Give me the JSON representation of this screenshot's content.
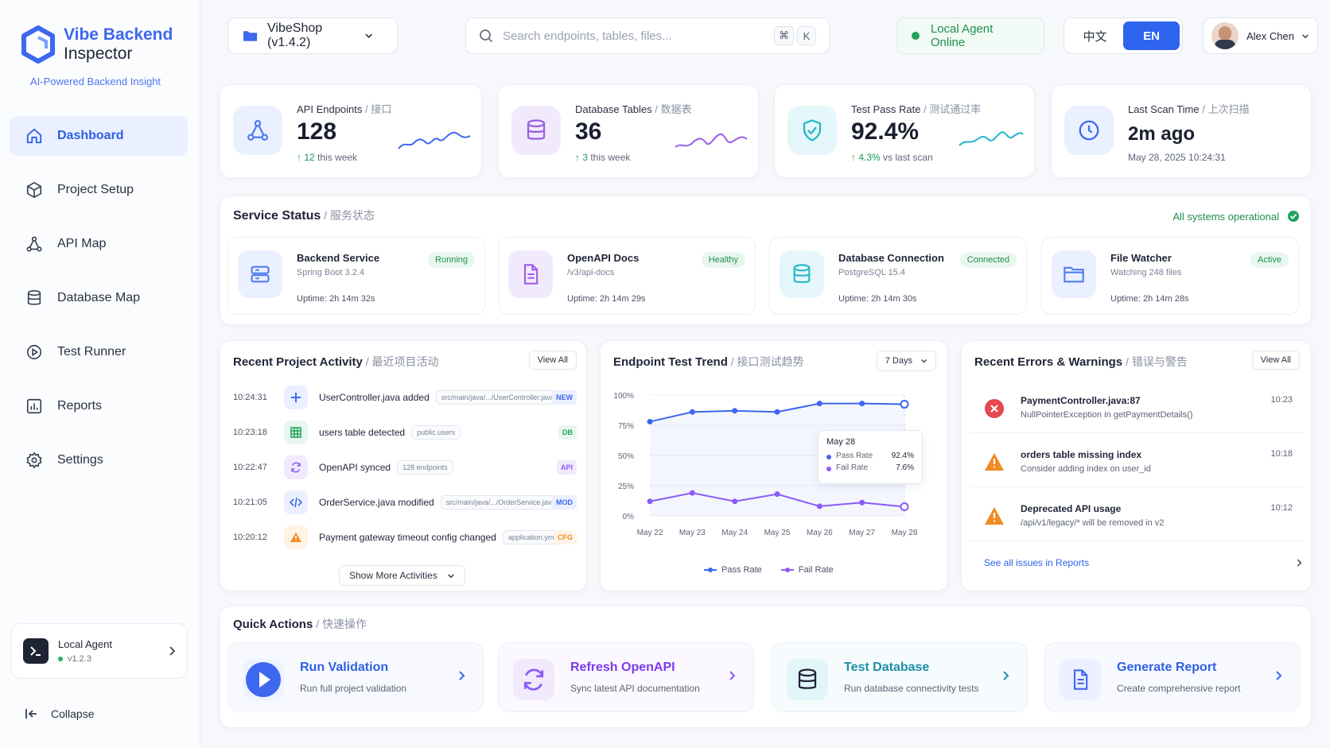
{
  "brand": {
    "title_line1": "Vibe Backend",
    "title_line2": "Inspector",
    "subtitle": "AI-Powered Backend Insight"
  },
  "nav": [
    {
      "label": "Dashboard",
      "icon": "home-icon",
      "active": true
    },
    {
      "label": "Project Setup",
      "icon": "cube-icon"
    },
    {
      "label": "API Map",
      "icon": "network-icon"
    },
    {
      "label": "Database Map",
      "icon": "database-icon"
    },
    {
      "label": "Test Runner",
      "icon": "play-circle-icon"
    },
    {
      "label": "Reports",
      "icon": "bar-chart-icon"
    },
    {
      "label": "Settings",
      "icon": "gear-icon"
    }
  ],
  "agent": {
    "name": "Local Agent",
    "version": "v1.2.3"
  },
  "collapse_label": "Collapse",
  "topbar": {
    "project": "VibeShop (v1.4.2)",
    "search_placeholder": "Search endpoints, tables, files...",
    "kbd1": "⌘",
    "kbd2": "K",
    "status": "Local Agent Online",
    "lang_zh": "中文",
    "lang_en": "EN",
    "user": "Alex Chen"
  },
  "stats": [
    {
      "label": "API Endpoints",
      "label_cn": " / 接口",
      "value": "128",
      "sub_hl": "↑ 12",
      "sub": " this week",
      "color": "#4f7cf0",
      "bg": "#eaf0ff"
    },
    {
      "label": "Database Tables",
      "label_cn": " / 数据表",
      "value": "36",
      "sub_hl": "↑ 3",
      "sub": " this week",
      "color": "#9b5de5",
      "bg": "#f1eafd"
    },
    {
      "label": "Test Pass Rate",
      "label_cn": " / 测试通过率",
      "value": "92.4%",
      "sub_hl": "↑ 4.3%",
      "sub": " vs last scan",
      "color": "#22b5c9",
      "bg": "#e5f7fa"
    },
    {
      "label": "Last Scan Time",
      "label_cn": " / 上次扫描",
      "value": "2m ago",
      "sub_hl": "",
      "sub": "May 28, 2025 10:24:31",
      "color": "#3d67ee",
      "bg": "#eaf0ff"
    }
  ],
  "service_status": {
    "title": "Service Status",
    "title_cn": " / 服务状态",
    "overall": "All systems operational",
    "items": [
      {
        "name": "Backend Service",
        "sub": "Spring Boot 3.2.4",
        "uptime": "Uptime: 2h 14m 32s",
        "badge": "Running",
        "icon": "server-icon",
        "bg": "#eaf0ff",
        "color": "#4f7cf0"
      },
      {
        "name": "OpenAPI Docs",
        "sub": "/v3/api-docs",
        "uptime": "Uptime: 2h 14m 29s",
        "badge": "Healthy",
        "icon": "document-icon",
        "bg": "#f1eafd",
        "color": "#9b5de5"
      },
      {
        "name": "Database Connection",
        "sub": "PostgreSQL 15.4",
        "uptime": "Uptime: 2h 14m 30s",
        "badge": "Connected",
        "icon": "database-icon",
        "bg": "#e5f7fa",
        "color": "#22b5c9"
      },
      {
        "name": "File Watcher",
        "sub": "Watching 248 files",
        "uptime": "Uptime: 2h 14m 28s",
        "badge": "Active",
        "icon": "folder-icon",
        "bg": "#eaf0ff",
        "color": "#4f7cf0"
      }
    ]
  },
  "activity": {
    "title": "Recent Project Activity",
    "title_cn": " / 最近项目活动",
    "view_all": "View All",
    "show_more": "Show More Activities",
    "rows": [
      {
        "time": "10:24:31",
        "text": "UserController.java added",
        "chip": "src/main/java/.../UserController.java",
        "tag": "NEW",
        "icon": "plus-icon",
        "color": "#3d67ee",
        "bg": "#eaf0ff"
      },
      {
        "time": "10:23:18",
        "text": "users table detected",
        "chip": "public.users",
        "tag": "DB",
        "icon": "table-icon",
        "color": "#22a35a",
        "bg": "#e8f7ee"
      },
      {
        "time": "10:22:47",
        "text": "OpenAPI synced",
        "chip": "128 endpoints",
        "tag": "API",
        "icon": "sync-icon",
        "color": "#8b5cf6",
        "bg": "#f1eafd"
      },
      {
        "time": "10:21:05",
        "text": "OrderService.java modified",
        "chip": "src/main/java/.../OrderService.java",
        "tag": "MOD",
        "icon": "code-icon",
        "color": "#3d67ee",
        "bg": "#eaf0ff"
      },
      {
        "time": "10:20:12",
        "text": "Payment gateway timeout config changed",
        "chip": "application.yml",
        "tag": "CFG",
        "icon": "warning-icon",
        "color": "#f08a24",
        "bg": "#fff3e6"
      }
    ]
  },
  "trend": {
    "title": "Endpoint Test Trend",
    "title_cn": " / 接口测试趋势",
    "range": "7 Days",
    "tooltip": {
      "date": "May 28",
      "pass_label": "Pass Rate",
      "pass": "92.4%",
      "fail_label": "Fail Rate",
      "fail": "7.6%"
    }
  },
  "chart_data": {
    "type": "line",
    "categories": [
      "May 22",
      "May 23",
      "May 24",
      "May 25",
      "May 26",
      "May 27",
      "May 28"
    ],
    "yticks": [
      "0%",
      "25%",
      "50%",
      "75%",
      "100%"
    ],
    "ylim": [
      0,
      100
    ],
    "series": [
      {
        "name": "Pass Rate",
        "color": "#3d67ee",
        "values": [
          78,
          86,
          87,
          86,
          93,
          93,
          92.4
        ]
      },
      {
        "name": "Fail Rate",
        "color": "#8b5cf6",
        "values": [
          12,
          19,
          12,
          18,
          8,
          11,
          7.6
        ]
      }
    ]
  },
  "errors": {
    "title": "Recent Errors & Warnings",
    "title_cn": " / 错误与警告",
    "view_all": "View All",
    "see_all": "See all issues in Reports",
    "items": [
      {
        "title": "PaymentController.java:87",
        "desc": "NullPointerException in getPaymentDetails()",
        "time": "10:23",
        "level": "error"
      },
      {
        "title": "orders table missing index",
        "desc": "Consider adding index on user_id",
        "time": "10:18",
        "level": "warning"
      },
      {
        "title": "Deprecated API usage",
        "desc": "/api/v1/legacy/* will be removed in v2",
        "time": "10:12",
        "level": "warning"
      }
    ]
  },
  "quick_actions": {
    "title": "Quick Actions",
    "title_cn": " / 快速操作",
    "items": [
      {
        "title": "Run Validation",
        "desc": "Run full project validation",
        "icon": "play-icon",
        "color": "#3d67ee",
        "bg": "#eef3ff"
      },
      {
        "title": "Refresh OpenAPI",
        "desc": "Sync latest API documentation",
        "icon": "refresh-icon",
        "color": "#8b5cf6",
        "bg": "#f4effe"
      },
      {
        "title": "Test Database",
        "desc": "Run database connectivity tests",
        "icon": "database-icon",
        "color": "#1f9fb5",
        "bg": "#eaf8fb"
      },
      {
        "title": "Generate Report",
        "desc": "Create comprehensive report",
        "icon": "report-icon",
        "color": "#3d67ee",
        "bg": "#eef3ff"
      }
    ]
  }
}
